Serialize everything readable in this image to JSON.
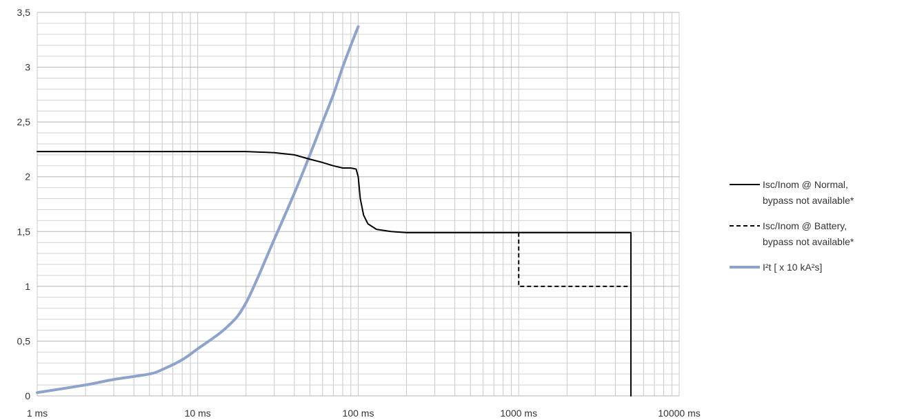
{
  "chart_data": {
    "type": "line",
    "title": "",
    "xlabel": "",
    "ylabel": "",
    "x_scale": "log",
    "x_unit": "ms",
    "xlim": [
      1,
      10000
    ],
    "ylim": [
      0,
      3.5
    ],
    "grid": true,
    "legend_position": "right",
    "x_tick_labels": [
      "1 ms",
      "10 ms",
      "100 ms",
      "1000 ms",
      "10000 ms"
    ],
    "y_tick_labels": [
      "0",
      "0,5",
      "1",
      "1,5",
      "2",
      "2,5",
      "3",
      "3,5"
    ],
    "series": [
      {
        "name": "Isc/Inom @ Normal, bypass not available*",
        "legend_lines": [
          "Isc/Inom @ Normal,",
          "bypass not available*"
        ],
        "color": "#000000",
        "style": "solid",
        "x": [
          1,
          5,
          10,
          20,
          30,
          40,
          50,
          60,
          70,
          80,
          90,
          97,
          100,
          103,
          108,
          115,
          130,
          160,
          200,
          400,
          1000,
          2000,
          5000,
          5000
        ],
        "y": [
          2.23,
          2.23,
          2.23,
          2.23,
          2.22,
          2.2,
          2.16,
          2.13,
          2.1,
          2.08,
          2.08,
          2.07,
          2.0,
          1.8,
          1.65,
          1.57,
          1.52,
          1.5,
          1.49,
          1.49,
          1.49,
          1.49,
          1.49,
          0
        ]
      },
      {
        "name": "Isc/Inom @ Battery, bypass not available*",
        "legend_lines": [
          "Isc/Inom @ Battery,",
          "bypass not available*"
        ],
        "color": "#000000",
        "style": "dashed",
        "x": [
          1000,
          1000,
          5000
        ],
        "y": [
          1.49,
          1.0,
          1.0
        ]
      },
      {
        "name": "I²t [ x 10 kA²s]",
        "legend_lines": [
          "I²t [ x 10 kA²s]"
        ],
        "color": "#8ea3cc",
        "style": "solid",
        "x": [
          1,
          2,
          3,
          5,
          6,
          8,
          10,
          15,
          20,
          30,
          40,
          50,
          60,
          70,
          80,
          90,
          100
        ],
        "y": [
          0.03,
          0.1,
          0.15,
          0.2,
          0.24,
          0.33,
          0.43,
          0.62,
          0.85,
          1.43,
          1.85,
          2.2,
          2.5,
          2.75,
          3.0,
          3.2,
          3.37
        ]
      }
    ]
  }
}
